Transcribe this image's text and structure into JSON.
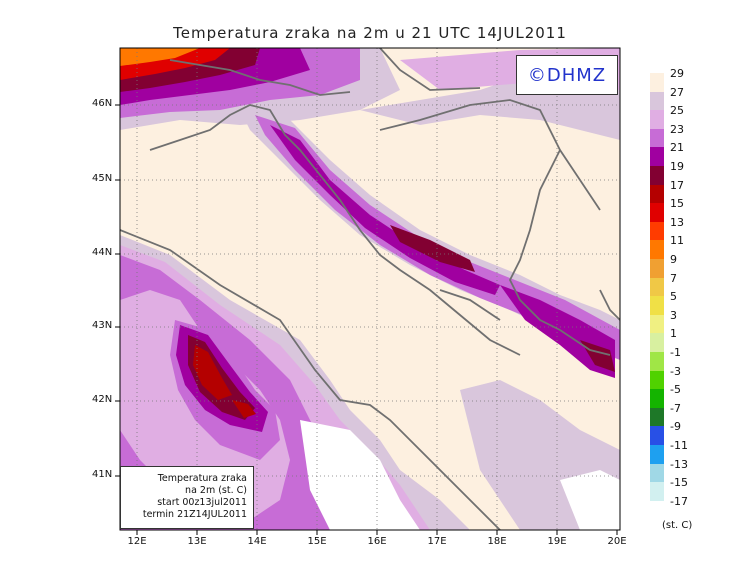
{
  "title": "Temperatura zraka na 2m u 21 UTC 14JUL2011",
  "logo": "©DHMZ",
  "info": {
    "line1": "Temperatura zraka",
    "line2": "na 2m (st. C)",
    "line3": "start 00z13jul2011",
    "line4": "termin 21Z14JUL2011"
  },
  "x_ticks": [
    "12E",
    "13E",
    "14E",
    "15E",
    "16E",
    "17E",
    "18E",
    "19E",
    "20E"
  ],
  "y_ticks": [
    "46N",
    "45N",
    "44N",
    "43N",
    "42N",
    "41N"
  ],
  "legend": {
    "unit": "(st. C)",
    "labels": [
      "29",
      "27",
      "25",
      "23",
      "21",
      "19",
      "17",
      "15",
      "13",
      "11",
      "9",
      "7",
      "5",
      "3",
      "1",
      "-1",
      "-3",
      "-5",
      "-7",
      "-9",
      "-11",
      "-13",
      "-15",
      "-17"
    ],
    "colors": [
      "#fdf0e0",
      "#d9c6dc",
      "#e0aee3",
      "#c76cd6",
      "#a000a0",
      "#820032",
      "#b40000",
      "#e00000",
      "#ff3c00",
      "#ff7800",
      "#f0a032",
      "#f0c846",
      "#f0e046",
      "#f0f082",
      "#d8f0a0",
      "#a0e646",
      "#50d200",
      "#14b400",
      "#1e7828",
      "#2850e6",
      "#1ea0f0",
      "#a0d8e6",
      "#d2f0f0",
      "#ffffff"
    ]
  }
}
